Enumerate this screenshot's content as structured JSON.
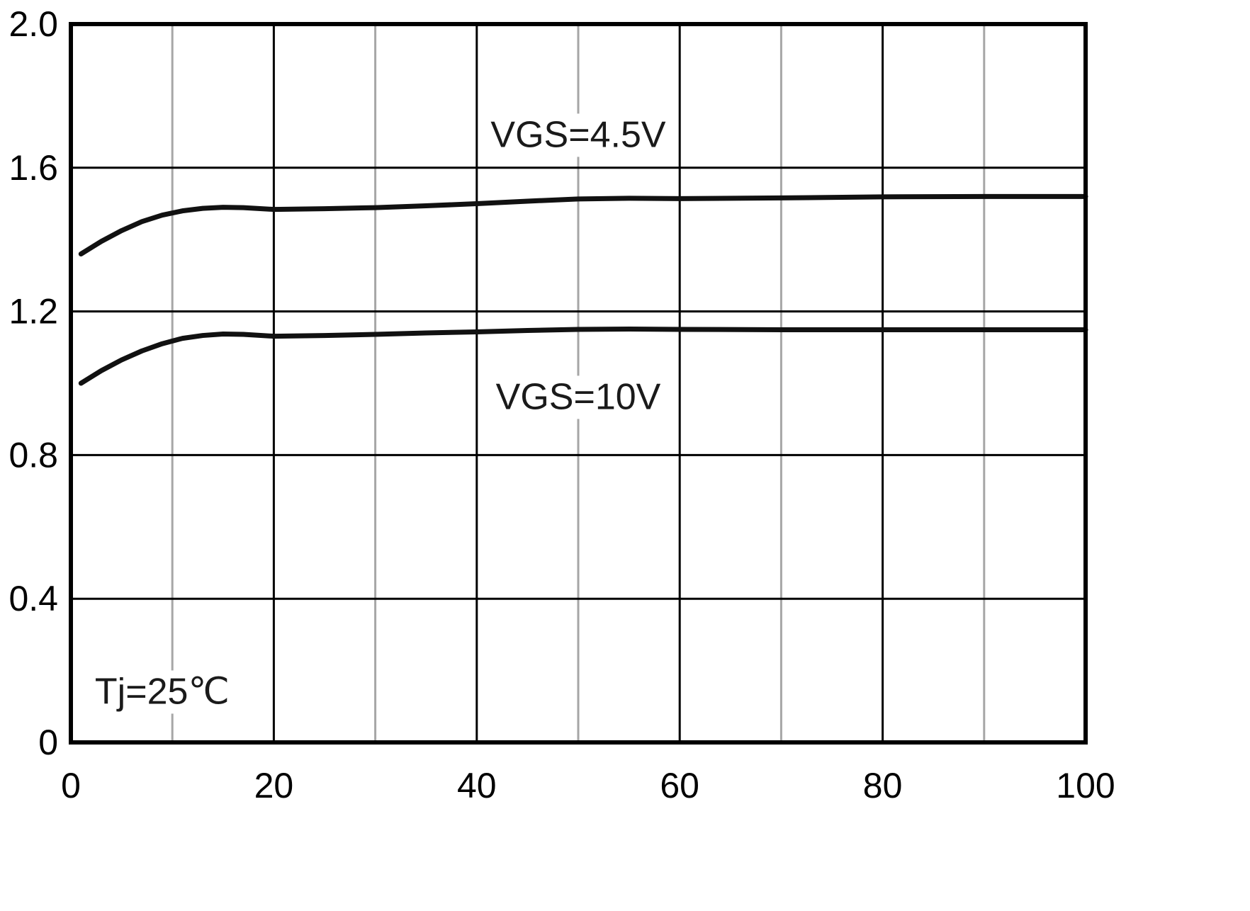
{
  "chart_data": {
    "type": "line",
    "title": "",
    "xlabel": "",
    "ylabel": "",
    "xlim": [
      0,
      100
    ],
    "ylim": [
      0,
      2.0
    ],
    "grid": true,
    "legend_position": "none",
    "xticks": [
      {
        "value": 0,
        "label": "0"
      },
      {
        "value": 20,
        "label": "20"
      },
      {
        "value": 40,
        "label": "40"
      },
      {
        "value": 60,
        "label": "60"
      },
      {
        "value": 80,
        "label": "80"
      },
      {
        "value": 100,
        "label": "100"
      }
    ],
    "yticks": [
      {
        "value": 0.0,
        "label": "0"
      },
      {
        "value": 0.4,
        "label": "0.4"
      },
      {
        "value": 0.8,
        "label": "0.8"
      },
      {
        "value": 1.2,
        "label": "1.2"
      },
      {
        "value": 1.6,
        "label": "1.6"
      },
      {
        "value": 2.0,
        "label": "2.0"
      }
    ],
    "x_major_gridlines": [
      20,
      40,
      60,
      80
    ],
    "x_minor_gridlines": [
      10,
      30,
      50,
      70,
      90
    ],
    "y_major_gridlines": [
      0.4,
      0.8,
      1.2,
      1.6
    ],
    "series": [
      {
        "name": "VGS=4.5V",
        "x": [
          1,
          3,
          5,
          7,
          9,
          11,
          13,
          15,
          17,
          20,
          25,
          30,
          35,
          40,
          45,
          50,
          55,
          60,
          70,
          80,
          90,
          100
        ],
        "values": [
          1.36,
          1.395,
          1.425,
          1.45,
          1.468,
          1.48,
          1.487,
          1.49,
          1.489,
          1.484,
          1.486,
          1.489,
          1.494,
          1.5,
          1.507,
          1.513,
          1.515,
          1.514,
          1.516,
          1.519,
          1.52,
          1.52
        ]
      },
      {
        "name": "VGS=10V",
        "x": [
          1,
          3,
          5,
          7,
          9,
          11,
          13,
          15,
          17,
          20,
          25,
          30,
          35,
          40,
          45,
          50,
          55,
          60,
          70,
          80,
          90,
          100
        ],
        "values": [
          1.0,
          1.035,
          1.065,
          1.09,
          1.11,
          1.125,
          1.133,
          1.137,
          1.136,
          1.131,
          1.133,
          1.136,
          1.14,
          1.143,
          1.147,
          1.15,
          1.151,
          1.15,
          1.149,
          1.149,
          1.149,
          1.149
        ]
      }
    ],
    "annotations": [
      {
        "text": "VGS=4.5V",
        "x": 50,
        "y": 1.69
      },
      {
        "text": "VGS=10V",
        "x": 50,
        "y": 0.96
      },
      {
        "text": "Tj=25℃",
        "x": 9,
        "y": 0.14
      }
    ],
    "colors": {
      "curve": "#111111",
      "major_grid": "#000000",
      "minor_grid": "#a6a6a6",
      "border": "#000000",
      "tick_text": "#000000"
    }
  }
}
